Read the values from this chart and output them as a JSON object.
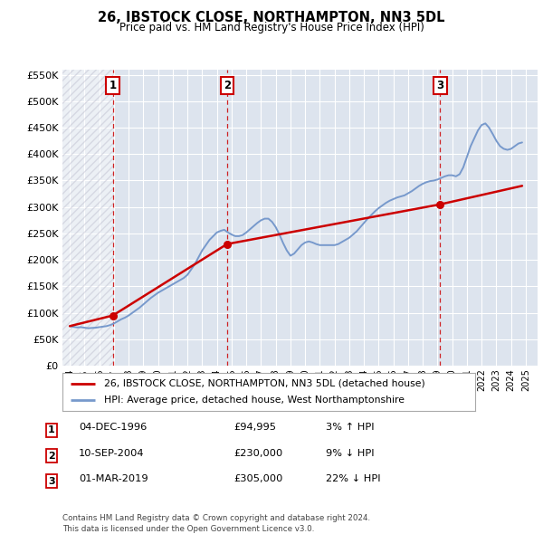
{
  "title": "26, IBSTOCK CLOSE, NORTHAMPTON, NN3 5DL",
  "subtitle": "Price paid vs. HM Land Registry's House Price Index (HPI)",
  "hpi_label": "HPI: Average price, detached house, West Northamptonshire",
  "property_label": "26, IBSTOCK CLOSE, NORTHAMPTON, NN3 5DL (detached house)",
  "transactions": [
    {
      "num": 1,
      "date": "04-DEC-1996",
      "price": 94995,
      "hpi_diff": "3% ↑ HPI",
      "x_year": 1996.92
    },
    {
      "num": 2,
      "date": "10-SEP-2004",
      "price": 230000,
      "hpi_diff": "9% ↓ HPI",
      "x_year": 2004.69
    },
    {
      "num": 3,
      "date": "01-MAR-2019",
      "price": 305000,
      "hpi_diff": "22% ↓ HPI",
      "x_year": 2019.17
    }
  ],
  "ylim": [
    0,
    560000
  ],
  "xlim_start": 1993.5,
  "xlim_end": 2025.8,
  "background_color": "#ffffff",
  "plot_bg_color": "#dde4ee",
  "grid_color": "#ffffff",
  "hpi_line_color": "#7799cc",
  "property_line_color": "#cc0000",
  "dashed_line_color": "#cc0000",
  "footer_text": "Contains HM Land Registry data © Crown copyright and database right 2024.\nThis data is licensed under the Open Government Licence v3.0.",
  "hpi_data_x": [
    1994.0,
    1994.25,
    1994.5,
    1994.75,
    1995.0,
    1995.25,
    1995.5,
    1995.75,
    1996.0,
    1996.25,
    1996.5,
    1996.75,
    1997.0,
    1997.25,
    1997.5,
    1997.75,
    1998.0,
    1998.25,
    1998.5,
    1998.75,
    1999.0,
    1999.25,
    1999.5,
    1999.75,
    2000.0,
    2000.25,
    2000.5,
    2000.75,
    2001.0,
    2001.25,
    2001.5,
    2001.75,
    2002.0,
    2002.25,
    2002.5,
    2002.75,
    2003.0,
    2003.25,
    2003.5,
    2003.75,
    2004.0,
    2004.25,
    2004.5,
    2004.75,
    2005.0,
    2005.25,
    2005.5,
    2005.75,
    2006.0,
    2006.25,
    2006.5,
    2006.75,
    2007.0,
    2007.25,
    2007.5,
    2007.75,
    2008.0,
    2008.25,
    2008.5,
    2008.75,
    2009.0,
    2009.25,
    2009.5,
    2009.75,
    2010.0,
    2010.25,
    2010.5,
    2010.75,
    2011.0,
    2011.25,
    2011.5,
    2011.75,
    2012.0,
    2012.25,
    2012.5,
    2012.75,
    2013.0,
    2013.25,
    2013.5,
    2013.75,
    2014.0,
    2014.25,
    2014.5,
    2014.75,
    2015.0,
    2015.25,
    2015.5,
    2015.75,
    2016.0,
    2016.25,
    2016.5,
    2016.75,
    2017.0,
    2017.25,
    2017.5,
    2017.75,
    2018.0,
    2018.25,
    2018.5,
    2018.75,
    2019.0,
    2019.25,
    2019.5,
    2019.75,
    2020.0,
    2020.25,
    2020.5,
    2020.75,
    2021.0,
    2021.25,
    2021.5,
    2021.75,
    2022.0,
    2022.25,
    2022.5,
    2022.75,
    2023.0,
    2023.25,
    2023.5,
    2023.75,
    2024.0,
    2024.25,
    2024.5,
    2024.75
  ],
  "hpi_data_y": [
    75000,
    73500,
    72500,
    73000,
    72000,
    71000,
    71500,
    72000,
    73000,
    74000,
    75000,
    77000,
    80000,
    84000,
    88000,
    91000,
    95000,
    100000,
    105000,
    110000,
    116000,
    122000,
    128000,
    133000,
    138000,
    142000,
    146000,
    150000,
    154000,
    158000,
    162000,
    166000,
    172000,
    182000,
    192000,
    205000,
    218000,
    228000,
    238000,
    245000,
    252000,
    255000,
    257000,
    252000,
    248000,
    245000,
    245000,
    247000,
    252000,
    258000,
    264000,
    270000,
    275000,
    278000,
    278000,
    272000,
    262000,
    248000,
    232000,
    218000,
    208000,
    212000,
    220000,
    228000,
    233000,
    235000,
    233000,
    230000,
    228000,
    228000,
    228000,
    228000,
    228000,
    230000,
    234000,
    238000,
    242000,
    248000,
    254000,
    262000,
    270000,
    278000,
    285000,
    292000,
    298000,
    303000,
    308000,
    312000,
    315000,
    318000,
    320000,
    322000,
    326000,
    330000,
    335000,
    340000,
    344000,
    347000,
    349000,
    350000,
    352000,
    355000,
    358000,
    360000,
    360000,
    358000,
    362000,
    375000,
    395000,
    415000,
    430000,
    445000,
    455000,
    458000,
    450000,
    438000,
    425000,
    415000,
    410000,
    408000,
    410000,
    415000,
    420000,
    422000
  ],
  "property_data_x": [
    1994.0,
    1996.92,
    2004.69,
    2019.17,
    2024.75
  ],
  "property_data_y": [
    75000,
    94995,
    230000,
    305000,
    340000
  ]
}
